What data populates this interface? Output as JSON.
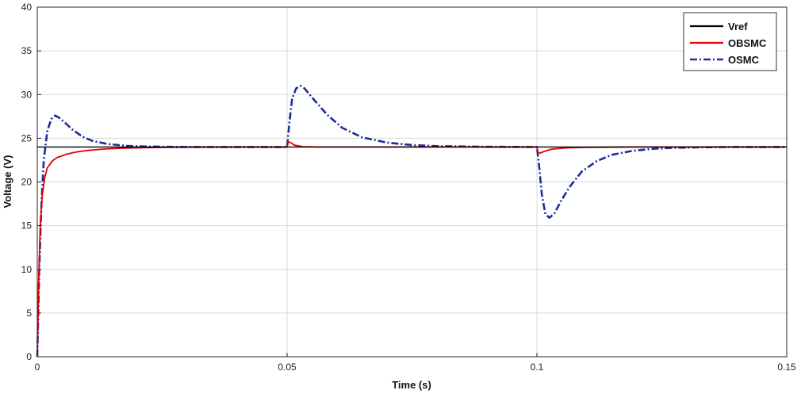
{
  "chart_data": {
    "type": "line",
    "xlabel": "Time (s)",
    "ylabel": "Voltage (V)",
    "xlim": [
      0,
      0.15
    ],
    "ylim": [
      0,
      40
    ],
    "xticks": [
      0,
      0.05,
      0.1,
      0.15
    ],
    "xtick_labels": [
      "0",
      "0.05",
      "0.1",
      "0.15"
    ],
    "yticks": [
      0,
      5,
      10,
      15,
      20,
      25,
      30,
      35,
      40
    ],
    "ytick_labels": [
      "0",
      "5",
      "10",
      "15",
      "20",
      "25",
      "30",
      "35",
      "40"
    ],
    "grid": true,
    "legend_position": "top-right",
    "series": [
      {
        "name": "Vref",
        "color": "#000000",
        "style": "solid",
        "x": [
          0,
          0.15
        ],
        "y": [
          24,
          24
        ]
      },
      {
        "name": "OBSMC",
        "color": "#e00000",
        "style": "solid",
        "x": [
          0,
          0.0003,
          0.0006,
          0.001,
          0.0015,
          0.002,
          0.003,
          0.004,
          0.006,
          0.008,
          0.01,
          0.013,
          0.016,
          0.02,
          0.025,
          0.03,
          0.04,
          0.05,
          0.0502,
          0.0507,
          0.0515,
          0.053,
          0.056,
          0.06,
          0.07,
          0.08,
          0.09,
          0.1,
          0.1002,
          0.1006,
          0.1015,
          0.103,
          0.106,
          0.11,
          0.12,
          0.13,
          0.14,
          0.15
        ],
        "y": [
          0,
          9,
          15,
          18.5,
          20.5,
          21.6,
          22.4,
          22.8,
          23.2,
          23.45,
          23.6,
          23.75,
          23.85,
          23.9,
          23.95,
          23.98,
          24,
          24,
          24.6,
          24.5,
          24.2,
          24.05,
          24,
          24,
          24,
          24,
          24,
          24,
          23.4,
          23.3,
          23.5,
          23.75,
          23.9,
          23.96,
          24,
          24,
          24,
          24
        ]
      },
      {
        "name": "OSMC",
        "color": "#1a2e9e",
        "style": "dashdot",
        "x": [
          0,
          0.0004,
          0.0008,
          0.0013,
          0.002,
          0.0028,
          0.0036,
          0.0045,
          0.0055,
          0.007,
          0.009,
          0.011,
          0.014,
          0.018,
          0.022,
          0.026,
          0.03,
          0.04,
          0.05,
          0.0505,
          0.051,
          0.0518,
          0.0527,
          0.0535,
          0.0545,
          0.056,
          0.058,
          0.061,
          0.065,
          0.07,
          0.075,
          0.08,
          0.09,
          0.1,
          0.1005,
          0.101,
          0.1017,
          0.1025,
          0.1035,
          0.1048,
          0.1065,
          0.109,
          0.112,
          0.115,
          0.119,
          0.123,
          0.127,
          0.133,
          0.14,
          0.15
        ],
        "y": [
          0,
          10,
          17,
          22.5,
          25.8,
          27.2,
          27.6,
          27.3,
          26.8,
          26,
          25.2,
          24.7,
          24.35,
          24.12,
          24.05,
          24.02,
          24,
          24,
          24,
          27,
          29.5,
          30.7,
          31,
          30.7,
          30,
          29,
          27.7,
          26.2,
          25.1,
          24.5,
          24.22,
          24.1,
          24.02,
          24,
          21.5,
          18.5,
          16.3,
          15.9,
          16.4,
          17.8,
          19.4,
          21.2,
          22.4,
          23.1,
          23.55,
          23.78,
          23.9,
          23.97,
          24,
          24
        ]
      }
    ]
  }
}
